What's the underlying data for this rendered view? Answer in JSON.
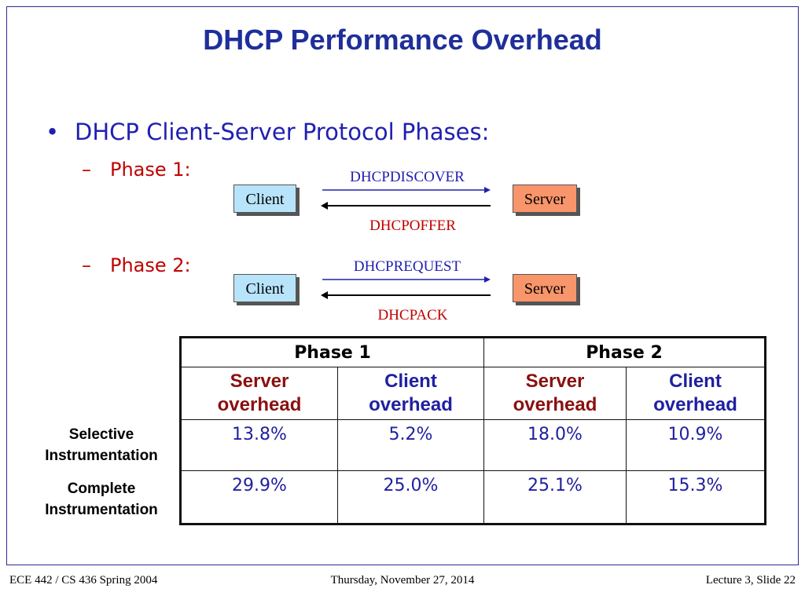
{
  "title": "DHCP Performance Overhead",
  "bullet": "DHCP Client-Server Protocol Phases:",
  "bullet_marker": "•",
  "dash_marker": "–",
  "phase1": {
    "label": "Phase 1:",
    "client": "Client",
    "server": "Server",
    "request": "DHCPDISCOVER",
    "reply": "DHCPOFFER"
  },
  "phase2": {
    "label": "Phase 2:",
    "client": "Client",
    "server": "Server",
    "request": "DHCPREQUEST",
    "reply": "DHCPACK"
  },
  "table": {
    "phase_headers": [
      "Phase 1",
      "Phase 2"
    ],
    "sub_headers": [
      [
        "Server",
        "overhead"
      ],
      [
        "Client",
        "overhead"
      ],
      [
        "Server",
        "overhead"
      ],
      [
        "Client",
        "overhead"
      ]
    ],
    "rows": [
      {
        "label": [
          "Selective",
          "Instrumentation"
        ],
        "values": [
          "13.8%",
          "5.2%",
          "18.0%",
          "10.9%"
        ]
      },
      {
        "label": [
          "Complete",
          "Instrumentation"
        ],
        "values": [
          "29.9%",
          "25.0%",
          "25.1%",
          "15.3%"
        ]
      }
    ]
  },
  "footer": {
    "left": "ECE 442 / CS 436 Spring 2004",
    "center": "Thursday, November 27, 2014",
    "right": "Lecture 3, Slide 22"
  },
  "colors": {
    "title": "#1f2f9a",
    "client_box": "#b8e4fb",
    "server_box": "#f9956a",
    "request_text": "#2020b0",
    "reply_text": "#c00000"
  }
}
